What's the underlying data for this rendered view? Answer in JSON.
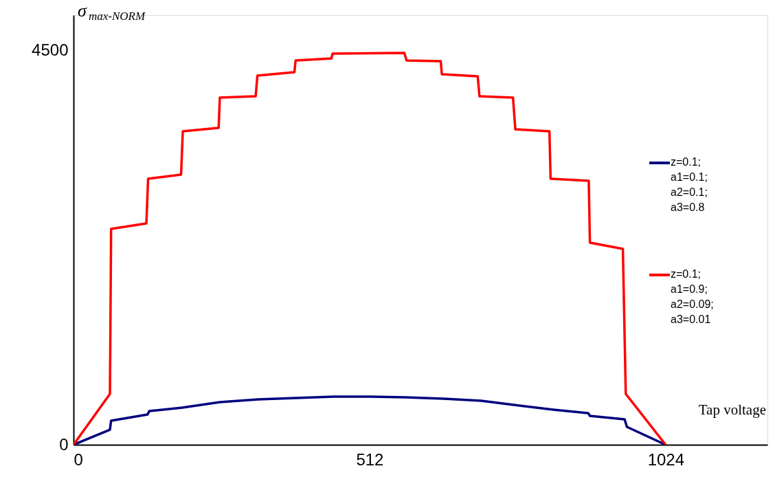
{
  "chart_data": {
    "type": "line",
    "xlabel": "Tap voltage",
    "ylabel": "σ$_{max-NORM}$",
    "xlim": [
      0,
      1200
    ],
    "xticks": [
      0,
      512,
      1024
    ],
    "ylim": [
      0,
      4900
    ],
    "yticks": [
      0,
      4500
    ],
    "grid": false,
    "legend": "right",
    "marker": "none",
    "line_style": "solid",
    "series": [
      {
        "name": "z=0.1;\na1=0.1;\na2=0.1;\na3=0.8",
        "color": "#000080",
        "x": [
          0,
          63,
          65,
          128,
          131,
          188,
          253,
          319,
          384,
          450,
          512,
          574,
          640,
          705,
          771,
          830,
          890,
          893,
          953,
          957,
          1024
        ],
        "values": [
          0,
          172,
          274,
          345,
          384,
          423,
          486,
          517,
          533,
          549,
          549,
          541,
          525,
          502,
          447,
          400,
          361,
          329,
          290,
          204,
          0
        ]
      },
      {
        "name": "z=0.1;\na1=0.9;\na2=0.09;\na3=0.01",
        "color": "#ff0000",
        "x": [
          0,
          63,
          65,
          126,
          129,
          186,
          189,
          251,
          253,
          315,
          318,
          382,
          384,
          446,
          448,
          572,
          576,
          635,
          637,
          699,
          702,
          760,
          764,
          823,
          825,
          891,
          893,
          950,
          955,
          1024
        ],
        "values": [
          0,
          580,
          2462,
          2524,
          3034,
          3081,
          3575,
          3614,
          3959,
          3975,
          4210,
          4249,
          4382,
          4406,
          4461,
          4468,
          4382,
          4374,
          4225,
          4202,
          3975,
          3959,
          3598,
          3575,
          3034,
          3010,
          2305,
          2234,
          580,
          0
        ]
      }
    ]
  }
}
